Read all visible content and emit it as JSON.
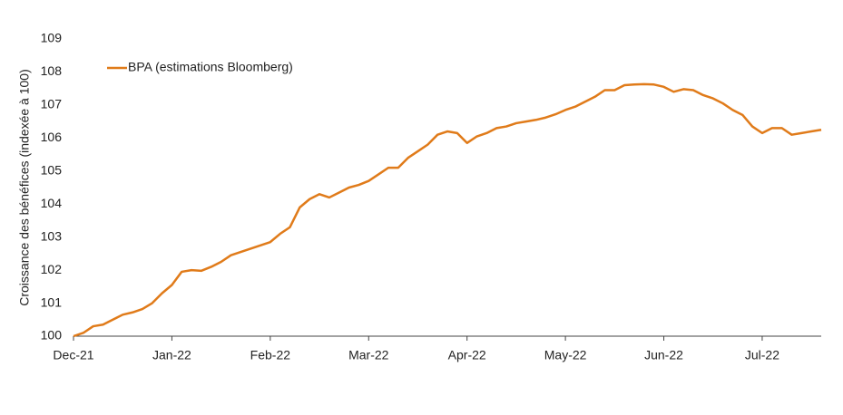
{
  "chart_data": {
    "type": "line",
    "y_label": "Croissance des bénéfices (indexée à 100)",
    "categories": [
      "Dec-21",
      null,
      null,
      null,
      null,
      null,
      null,
      null,
      null,
      null,
      "Jan-22",
      null,
      null,
      null,
      null,
      null,
      null,
      null,
      null,
      null,
      "Feb-22",
      null,
      null,
      null,
      null,
      null,
      null,
      null,
      null,
      null,
      "Mar-22",
      null,
      null,
      null,
      null,
      null,
      null,
      null,
      null,
      null,
      "Apr-22",
      null,
      null,
      null,
      null,
      null,
      null,
      null,
      null,
      null,
      "May-22",
      null,
      null,
      null,
      null,
      null,
      null,
      null,
      null,
      null,
      "Jun-22",
      null,
      null,
      null,
      null,
      null,
      null,
      null,
      null,
      null,
      "Jul-22",
      null,
      null,
      null,
      null,
      null,
      null
    ],
    "series": [
      {
        "name": "BPA (estimations Bloomberg)",
        "color": "#e07b1a",
        "values": [
          100.0,
          100.1,
          100.3,
          100.35,
          100.5,
          100.65,
          100.72,
          100.82,
          101.0,
          101.3,
          101.55,
          101.95,
          102.0,
          101.98,
          102.1,
          102.25,
          102.45,
          102.55,
          102.65,
          102.75,
          102.85,
          103.1,
          103.3,
          103.9,
          104.15,
          104.3,
          104.2,
          104.35,
          104.5,
          104.58,
          104.7,
          104.9,
          105.1,
          105.1,
          105.4,
          105.6,
          105.8,
          106.1,
          106.2,
          106.15,
          105.85,
          106.05,
          106.15,
          106.3,
          106.35,
          106.45,
          106.5,
          106.55,
          106.62,
          106.72,
          106.85,
          106.95,
          107.1,
          107.25,
          107.45,
          107.45,
          107.6,
          107.62,
          107.63,
          107.62,
          107.55,
          107.4,
          107.48,
          107.45,
          107.3,
          107.2,
          107.05,
          106.85,
          106.7,
          106.35,
          106.15,
          106.3,
          106.3,
          106.1,
          106.15,
          106.2,
          106.25
        ]
      }
    ],
    "ylim": [
      100,
      109
    ],
    "yticks": [
      100,
      101,
      102,
      103,
      104,
      105,
      106,
      107,
      108,
      109
    ],
    "legend": "upper left",
    "grid": false
  }
}
